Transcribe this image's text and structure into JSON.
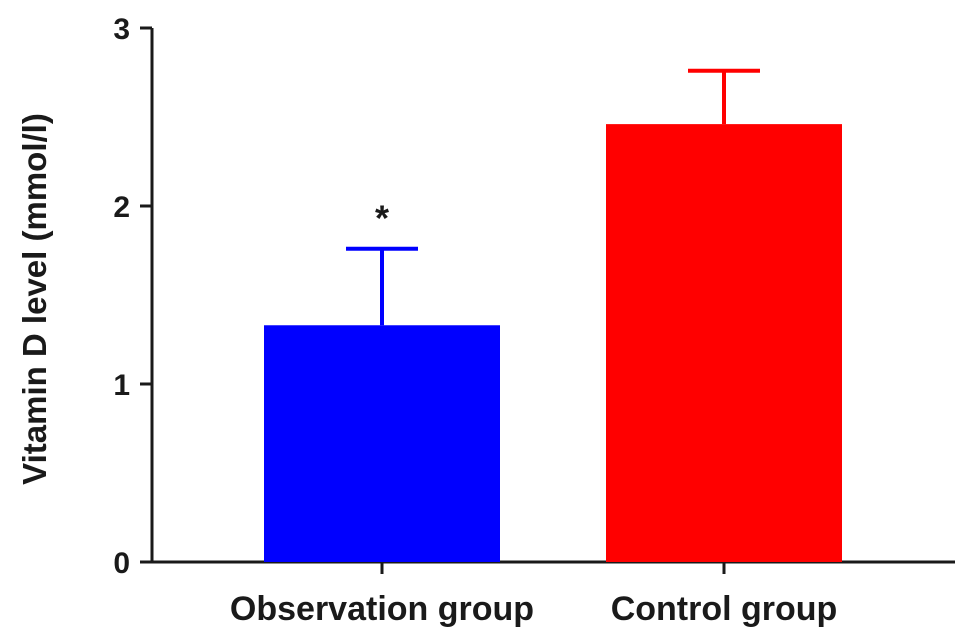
{
  "chart_data": {
    "type": "bar",
    "title": "",
    "xlabel": "",
    "ylabel": "Vitamin D level (mmol/l)",
    "ylim": [
      0,
      3
    ],
    "yticks": [
      0,
      1,
      2,
      3
    ],
    "grid": false,
    "legend": "none",
    "categories": [
      "Observation group",
      "Control group"
    ],
    "values": [
      1.33,
      2.46
    ],
    "errors": [
      0.43,
      0.3
    ],
    "colors": [
      "#0000ff",
      "#ff0000"
    ],
    "annotations": [
      {
        "category_index": 0,
        "text": "*"
      }
    ]
  }
}
